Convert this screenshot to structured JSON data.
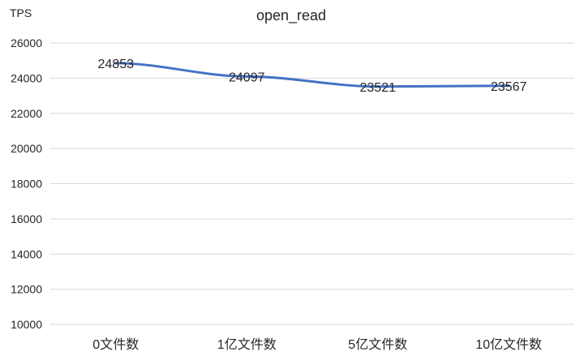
{
  "chart_data": {
    "type": "line",
    "title": "open_read",
    "ylabel": "TPS",
    "xlabel": "",
    "categories": [
      "0文件数",
      "1亿文件数",
      "5亿文件数",
      "10亿文件数"
    ],
    "series": [
      {
        "values": [
          24853,
          24097,
          23521,
          23567
        ]
      }
    ],
    "data_labels": [
      "24853",
      "24097",
      "23521",
      "23567"
    ],
    "ylim": [
      10000,
      26000
    ],
    "yticks": [
      "10000",
      "12000",
      "14000",
      "16000",
      "18000",
      "20000",
      "22000",
      "24000",
      "26000"
    ],
    "grid": true,
    "legend": "none",
    "line_color": "#4472C4",
    "grid_color": "#D9D9D9"
  }
}
